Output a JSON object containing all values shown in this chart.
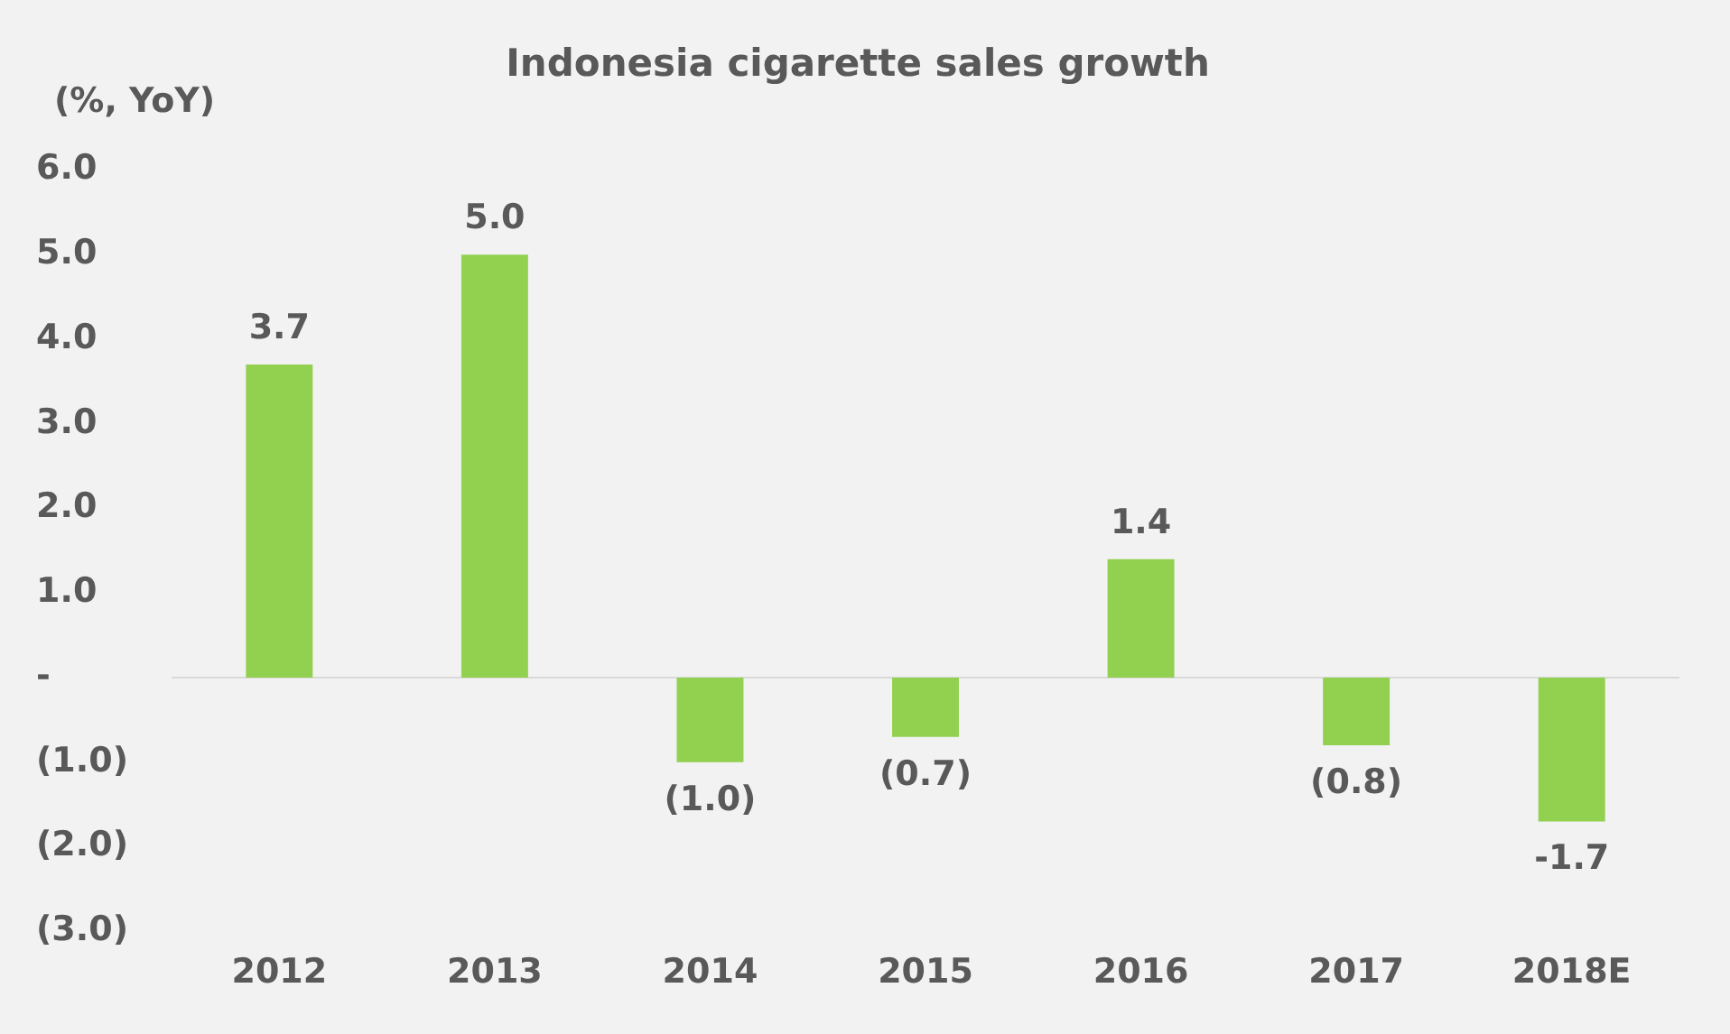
{
  "chart_data": {
    "type": "bar",
    "title": "Indonesia cigarette sales growth",
    "ylabel": "(%, YoY)",
    "categories": [
      "2012",
      "2013",
      "2014",
      "2015",
      "2016",
      "2017",
      "2018E"
    ],
    "values": [
      3.7,
      5.0,
      -1.0,
      -0.7,
      1.4,
      -0.8,
      -1.7
    ],
    "color": "#92d050",
    "value_labels": [
      "3.7",
      "5.0",
      "(1.0)",
      "(0.7)",
      "1.4",
      "(0.8)",
      "-1.7"
    ],
    "ylim": [
      -3,
      6
    ],
    "yticks": [
      {
        "value": -3,
        "label": "(3.0)"
      },
      {
        "value": -2,
        "label": "(2.0)"
      },
      {
        "value": -1,
        "label": "(1.0)"
      },
      {
        "value": 0,
        "label": "-"
      },
      {
        "value": 1,
        "label": "1.0"
      },
      {
        "value": 2,
        "label": "2.0"
      },
      {
        "value": 3,
        "label": "3.0"
      },
      {
        "value": 4,
        "label": "4.0"
      },
      {
        "value": 5,
        "label": "5.0"
      },
      {
        "value": 6,
        "label": "6.0"
      }
    ],
    "ref_lines": [
      {
        "axis": "y",
        "value": 0,
        "color": "#d9d9d9"
      }
    ],
    "grid": false,
    "legend": false
  }
}
